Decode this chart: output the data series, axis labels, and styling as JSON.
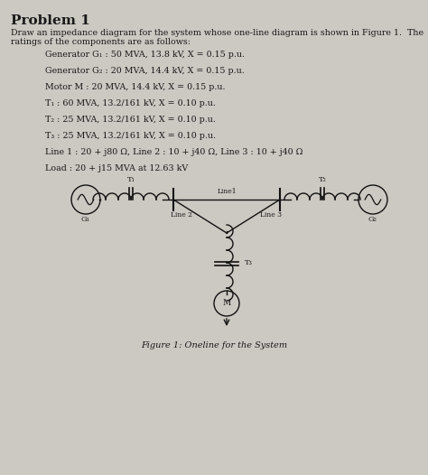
{
  "title": "Problem 1",
  "bg_color": "#ccc8c2",
  "text_color": "#1a1a1a",
  "body_line1": "Draw an impedance diagram for the system whose one-line diagram is shown in Figure 1.  The",
  "body_line2": "ratings of the components are as follows:",
  "items": [
    "Generator G₁ : 50 MVA, 13.8 kV, X = 0.15 p.u.",
    "Generator G₂ : 20 MVA, 14.4 kV, X = 0.15 p.u.",
    "Motor M : 20 MVA, 14.4 kV, X = 0.15 p.u.",
    "T₁ : 60 MVA, 13.2/161 kV, X = 0.10 p.u.",
    "T₂ : 25 MVA, 13.2/161 kV, X = 0.10 p.u.",
    "T₃ : 25 MVA, 13.2/161 kV, X = 0.10 p.u.",
    "Line 1 : 20 + j80 Ω, Line 2 : 10 + j40 Ω, Line 3 : 10 + j40 Ω",
    "Load : 20 + j15 MVA at 12.63 kV"
  ],
  "figure_caption": "Figure 1: Oneline for the System",
  "lc": "#111111",
  "lw": 1.0
}
